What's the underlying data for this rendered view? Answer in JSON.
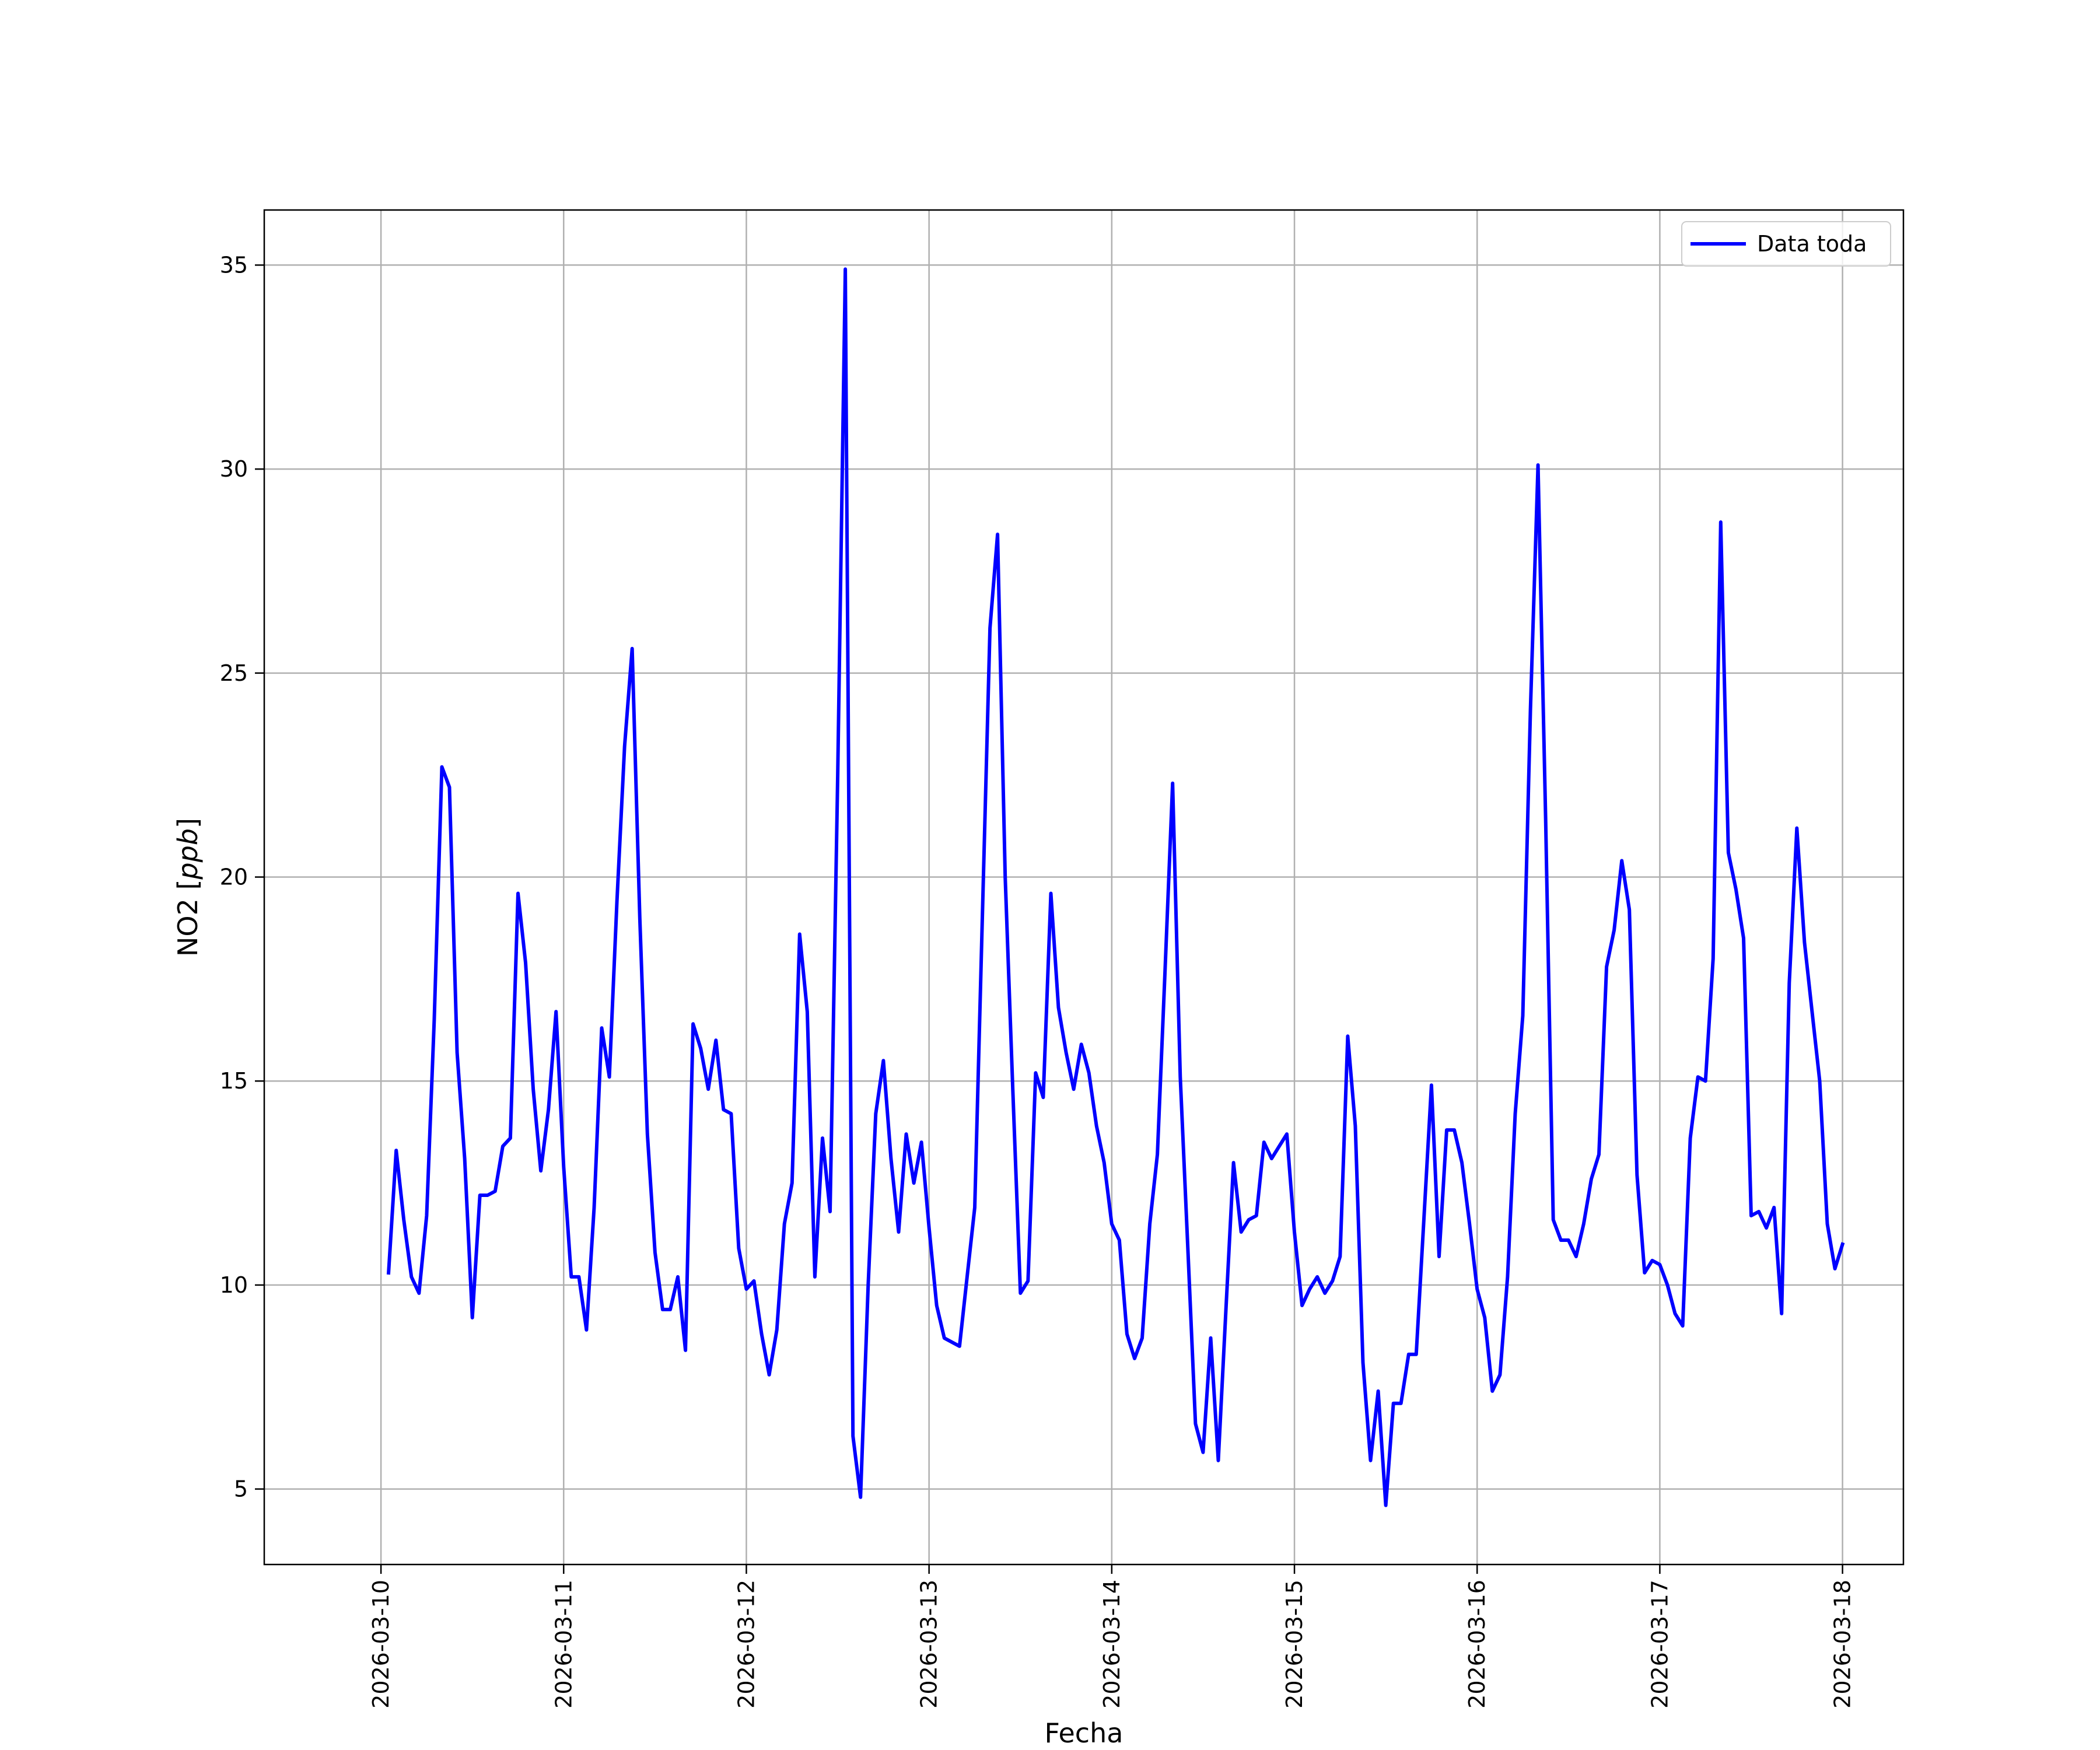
{
  "chart_data": {
    "type": "line",
    "xlabel": "Fecha",
    "ylabel": "NO2 [ppb]",
    "ylabel_prefix": "NO2 [",
    "ylabel_unit": "ppb",
    "ylabel_suffix": "]",
    "x_ticks": [
      "2026-03-10",
      "2026-03-11",
      "2026-03-12",
      "2026-03-13",
      "2026-03-14",
      "2026-03-15",
      "2026-03-16",
      "2026-03-17",
      "2026-03-18"
    ],
    "y_ticks": [
      5,
      10,
      15,
      20,
      25,
      30,
      35
    ],
    "xlim": [
      "2026-03-09T08:40",
      "2026-03-18T08:00"
    ],
    "ylim": [
      3.15,
      36.35
    ],
    "grid": true,
    "legend_position": "top-right",
    "series": [
      {
        "name": "Data toda",
        "color": "#0000ff",
        "x": [
          "2026-03-10T01:00",
          "2026-03-10T02:00",
          "2026-03-10T03:00",
          "2026-03-10T04:00",
          "2026-03-10T05:00",
          "2026-03-10T06:00",
          "2026-03-10T07:00",
          "2026-03-10T08:00",
          "2026-03-10T09:00",
          "2026-03-10T10:00",
          "2026-03-10T11:00",
          "2026-03-10T12:00",
          "2026-03-10T13:00",
          "2026-03-10T14:00",
          "2026-03-10T15:00",
          "2026-03-10T16:00",
          "2026-03-10T17:00",
          "2026-03-10T18:00",
          "2026-03-10T19:00",
          "2026-03-10T20:00",
          "2026-03-10T21:00",
          "2026-03-10T22:00",
          "2026-03-10T23:00",
          "2026-03-11T00:00",
          "2026-03-11T01:00",
          "2026-03-11T02:00",
          "2026-03-11T03:00",
          "2026-03-11T04:00",
          "2026-03-11T05:00",
          "2026-03-11T06:00",
          "2026-03-11T07:00",
          "2026-03-11T08:00",
          "2026-03-11T09:00",
          "2026-03-11T10:00",
          "2026-03-11T11:00",
          "2026-03-11T12:00",
          "2026-03-11T13:00",
          "2026-03-11T14:00",
          "2026-03-11T15:00",
          "2026-03-11T16:00",
          "2026-03-11T17:00",
          "2026-03-11T18:00",
          "2026-03-11T19:00",
          "2026-03-11T20:00",
          "2026-03-11T21:00",
          "2026-03-11T22:00",
          "2026-03-11T23:00",
          "2026-03-12T00:00",
          "2026-03-12T01:00",
          "2026-03-12T02:00",
          "2026-03-12T03:00",
          "2026-03-12T04:00",
          "2026-03-12T05:00",
          "2026-03-12T06:00",
          "2026-03-12T07:00",
          "2026-03-12T08:00",
          "2026-03-12T09:00",
          "2026-03-12T10:00",
          "2026-03-12T11:00",
          "2026-03-12T12:00",
          "2026-03-12T13:00",
          "2026-03-12T14:00",
          "2026-03-12T15:00",
          "2026-03-12T16:00",
          "2026-03-12T17:00",
          "2026-03-12T18:00",
          "2026-03-12T19:00",
          "2026-03-12T20:00",
          "2026-03-12T21:00",
          "2026-03-12T22:00",
          "2026-03-12T23:00",
          "2026-03-13T00:00",
          "2026-03-13T01:00",
          "2026-03-13T02:00",
          "2026-03-13T03:00",
          "2026-03-13T04:00",
          "2026-03-13T05:00",
          "2026-03-13T06:00",
          "2026-03-13T07:00",
          "2026-03-13T08:00",
          "2026-03-13T09:00",
          "2026-03-13T10:00",
          "2026-03-13T11:00",
          "2026-03-13T12:00",
          "2026-03-13T13:00",
          "2026-03-13T14:00",
          "2026-03-13T15:00",
          "2026-03-13T16:00",
          "2026-03-13T17:00",
          "2026-03-13T18:00",
          "2026-03-13T19:00",
          "2026-03-13T20:00",
          "2026-03-13T21:00",
          "2026-03-13T22:00",
          "2026-03-13T23:00",
          "2026-03-14T00:00",
          "2026-03-14T01:00",
          "2026-03-14T02:00",
          "2026-03-14T03:00",
          "2026-03-14T04:00",
          "2026-03-14T05:00",
          "2026-03-14T06:00",
          "2026-03-14T07:00",
          "2026-03-14T08:00",
          "2026-03-14T09:00",
          "2026-03-14T10:00",
          "2026-03-14T11:00",
          "2026-03-14T12:00",
          "2026-03-14T13:00",
          "2026-03-14T14:00",
          "2026-03-14T15:00",
          "2026-03-14T16:00",
          "2026-03-14T17:00",
          "2026-03-14T18:00",
          "2026-03-14T19:00",
          "2026-03-14T20:00",
          "2026-03-14T21:00",
          "2026-03-14T22:00",
          "2026-03-14T23:00",
          "2026-03-15T00:00",
          "2026-03-15T01:00",
          "2026-03-15T02:00",
          "2026-03-15T03:00",
          "2026-03-15T04:00",
          "2026-03-15T05:00",
          "2026-03-15T06:00",
          "2026-03-15T07:00",
          "2026-03-15T08:00",
          "2026-03-15T09:00",
          "2026-03-15T10:00",
          "2026-03-15T11:00",
          "2026-03-15T12:00",
          "2026-03-15T13:00",
          "2026-03-15T14:00",
          "2026-03-15T15:00",
          "2026-03-15T16:00",
          "2026-03-15T17:00",
          "2026-03-15T18:00",
          "2026-03-15T19:00",
          "2026-03-15T20:00",
          "2026-03-15T21:00",
          "2026-03-15T22:00",
          "2026-03-15T23:00",
          "2026-03-16T00:00",
          "2026-03-16T01:00",
          "2026-03-16T02:00",
          "2026-03-16T03:00",
          "2026-03-16T04:00",
          "2026-03-16T05:00",
          "2026-03-16T06:00",
          "2026-03-16T07:00",
          "2026-03-16T08:00",
          "2026-03-16T09:00",
          "2026-03-16T10:00",
          "2026-03-16T11:00",
          "2026-03-16T12:00",
          "2026-03-16T13:00",
          "2026-03-16T14:00",
          "2026-03-16T15:00",
          "2026-03-16T16:00",
          "2026-03-16T17:00",
          "2026-03-16T18:00",
          "2026-03-16T19:00",
          "2026-03-16T20:00",
          "2026-03-16T21:00",
          "2026-03-16T22:00",
          "2026-03-16T23:00",
          "2026-03-17T00:00",
          "2026-03-17T01:00",
          "2026-03-17T02:00",
          "2026-03-17T03:00",
          "2026-03-17T04:00",
          "2026-03-17T05:00",
          "2026-03-17T06:00",
          "2026-03-17T07:00",
          "2026-03-17T08:00",
          "2026-03-17T09:00",
          "2026-03-17T10:00",
          "2026-03-17T11:00",
          "2026-03-17T12:00",
          "2026-03-17T13:00",
          "2026-03-17T14:00",
          "2026-03-17T15:00",
          "2026-03-17T16:00",
          "2026-03-17T17:00",
          "2026-03-17T18:00",
          "2026-03-17T19:00",
          "2026-03-17T20:00",
          "2026-03-17T21:00",
          "2026-03-17T22:00",
          "2026-03-17T23:00",
          "2026-03-18T00:00"
        ],
        "y": [
          10.3,
          13.3,
          11.6,
          10.2,
          9.8,
          11.7,
          16.5,
          22.7,
          22.2,
          15.7,
          13.1,
          9.2,
          12.2,
          12.2,
          12.3,
          13.4,
          13.6,
          19.6,
          17.9,
          14.8,
          12.8,
          14.3,
          16.7,
          12.9,
          10.2,
          10.2,
          8.9,
          11.9,
          16.3,
          15.1,
          19.4,
          23.2,
          25.6,
          19.0,
          13.7,
          10.8,
          9.4,
          9.4,
          10.2,
          8.4,
          16.4,
          15.8,
          14.8,
          16.0,
          14.3,
          14.2,
          10.9,
          9.9,
          10.1,
          8.8,
          7.8,
          8.9,
          11.5,
          12.5,
          18.6,
          16.7,
          10.2,
          13.6,
          11.8,
          22.5,
          34.9,
          6.3,
          4.8,
          10.0,
          14.2,
          15.5,
          13.1,
          11.3,
          13.7,
          12.5,
          13.5,
          11.4,
          9.5,
          8.7,
          8.6,
          8.5,
          10.2,
          11.9,
          19.0,
          26.1,
          28.4,
          20.0,
          14.8,
          9.8,
          10.1,
          15.2,
          14.6,
          19.6,
          16.8,
          15.7,
          14.8,
          15.9,
          15.2,
          13.9,
          13.0,
          11.5,
          11.1,
          8.8,
          8.2,
          8.7,
          11.5,
          13.2,
          17.7,
          22.3,
          15.1,
          10.9,
          6.6,
          5.9,
          8.7,
          5.7,
          9.4,
          13.0,
          11.3,
          11.6,
          11.7,
          13.5,
          13.1,
          13.4,
          13.7,
          11.3,
          9.5,
          9.9,
          10.2,
          9.8,
          10.1,
          10.7,
          16.1,
          13.9,
          8.1,
          5.7,
          7.4,
          4.6,
          7.1,
          7.1,
          8.3,
          8.3,
          11.6,
          14.9,
          10.7,
          13.8,
          13.8,
          13.0,
          11.5,
          9.9,
          9.2,
          7.4,
          7.8,
          10.2,
          14.2,
          16.6,
          24.1,
          30.1,
          21.4,
          11.6,
          11.1,
          11.1,
          10.7,
          11.5,
          12.6,
          13.2,
          17.8,
          18.7,
          20.4,
          19.2,
          12.7,
          10.3,
          10.6,
          10.5,
          10.0,
          9.3,
          9.0,
          13.6,
          15.1,
          15.0,
          18.0,
          28.7,
          20.6,
          19.7,
          18.5,
          11.7,
          11.8,
          11.4,
          11.9,
          9.3,
          17.4,
          21.2,
          18.4,
          16.7,
          15.0,
          11.5,
          10.4,
          11.0
        ]
      }
    ]
  }
}
